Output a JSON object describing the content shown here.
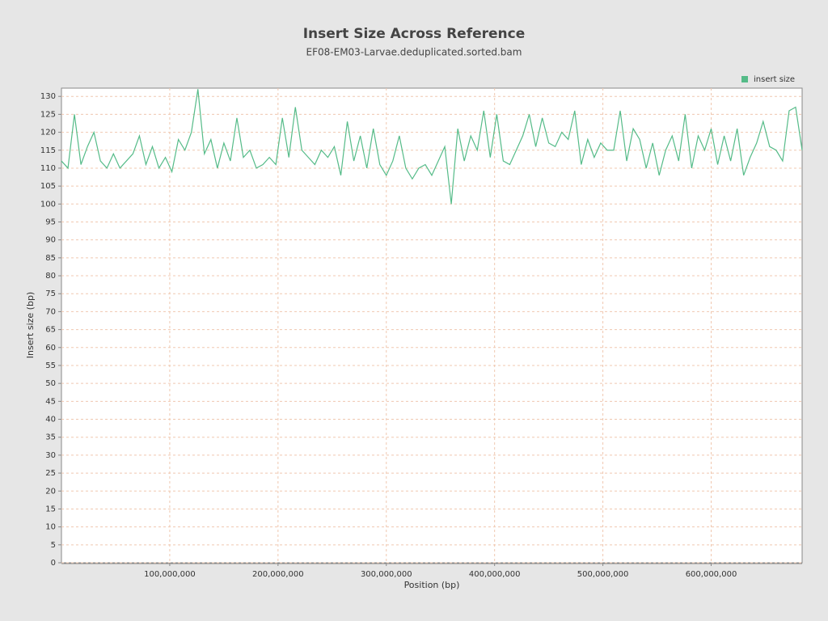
{
  "chart_data": {
    "type": "line",
    "title": "Insert Size Across Reference",
    "subtitle": "EF08-EM03-Larvae.deduplicated.sorted.bam",
    "x_label": "Position (bp)",
    "y_label": "Insert size (bp)",
    "legend": "top-right",
    "grid": true,
    "x": [
      0,
      6000000,
      12000000,
      18000000,
      24000000,
      30000000,
      36000000,
      42000000,
      48000000,
      54000000,
      60000000,
      66000000,
      72000000,
      78000000,
      84000000,
      90000000,
      96000000,
      102000000,
      108000000,
      114000000,
      120000000,
      126000000,
      132000000,
      138000000,
      144000000,
      150000000,
      156000000,
      162000000,
      168000000,
      174000000,
      180000000,
      186000000,
      192000000,
      198000000,
      204000000,
      210000000,
      216000000,
      222000000,
      228000000,
      234000000,
      240000000,
      246000000,
      252000000,
      258000000,
      264000000,
      270000000,
      276000000,
      282000000,
      288000000,
      294000000,
      300000000,
      306000000,
      312000000,
      318000000,
      324000000,
      330000000,
      336000000,
      342000000,
      348000000,
      354000000,
      360000000,
      366000000,
      372000000,
      378000000,
      384000000,
      390000000,
      396000000,
      402000000,
      408000000,
      414000000,
      420000000,
      426000000,
      432000000,
      438000000,
      444000000,
      450000000,
      456000000,
      462000000,
      468000000,
      474000000,
      480000000,
      486000000,
      492000000,
      498000000,
      504000000,
      510000000,
      516000000,
      522000000,
      528000000,
      534000000,
      540000000,
      546000000,
      552000000,
      558000000,
      564000000,
      570000000,
      576000000,
      582000000,
      588000000,
      594000000,
      600000000,
      606000000,
      612000000,
      618000000,
      624000000,
      630000000,
      636000000,
      642000000,
      648000000,
      654000000,
      660000000,
      666000000,
      672000000,
      678000000,
      684000000
    ],
    "series": [
      {
        "name": "insert size",
        "color": "#55bb88",
        "values": [
          112,
          110,
          125,
          111,
          116,
          120,
          112,
          110,
          114,
          110,
          112,
          114,
          119,
          111,
          116,
          110,
          113,
          109,
          118,
          115,
          120,
          132,
          114,
          118,
          110,
          117,
          112,
          124,
          113,
          115,
          110,
          111,
          113,
          111,
          124,
          113,
          127,
          115,
          113,
          111,
          115,
          113,
          116,
          108,
          123,
          112,
          119,
          110,
          121,
          111,
          108,
          112,
          119,
          110,
          107,
          110,
          111,
          108,
          112,
          116,
          100,
          121,
          112,
          119,
          115,
          126,
          113,
          125,
          112,
          111,
          115,
          119,
          125,
          116,
          124,
          117,
          116,
          120,
          118,
          126,
          111,
          118,
          113,
          117,
          115,
          115,
          126,
          112,
          121,
          118,
          110,
          117,
          108,
          115,
          119,
          112,
          125,
          110,
          119,
          115,
          121,
          111,
          119,
          112,
          121,
          108,
          113,
          117,
          123,
          116,
          115,
          112,
          126,
          127,
          115
        ]
      }
    ],
    "xlim": [
      0,
      684000000
    ],
    "ylim": [
      0,
      132.3
    ],
    "xticks": [
      {
        "value": 100000000,
        "label": "100,000,000"
      },
      {
        "value": 200000000,
        "label": "200,000,000"
      },
      {
        "value": 300000000,
        "label": "300,000,000"
      },
      {
        "value": 400000000,
        "label": "400,000,000"
      },
      {
        "value": 500000000,
        "label": "500,000,000"
      },
      {
        "value": 600000000,
        "label": "600,000,000"
      }
    ],
    "yticks": [
      0,
      5,
      10,
      15,
      20,
      25,
      30,
      35,
      40,
      45,
      50,
      55,
      60,
      65,
      70,
      75,
      80,
      85,
      90,
      95,
      100,
      105,
      110,
      115,
      120,
      125,
      130
    ]
  }
}
